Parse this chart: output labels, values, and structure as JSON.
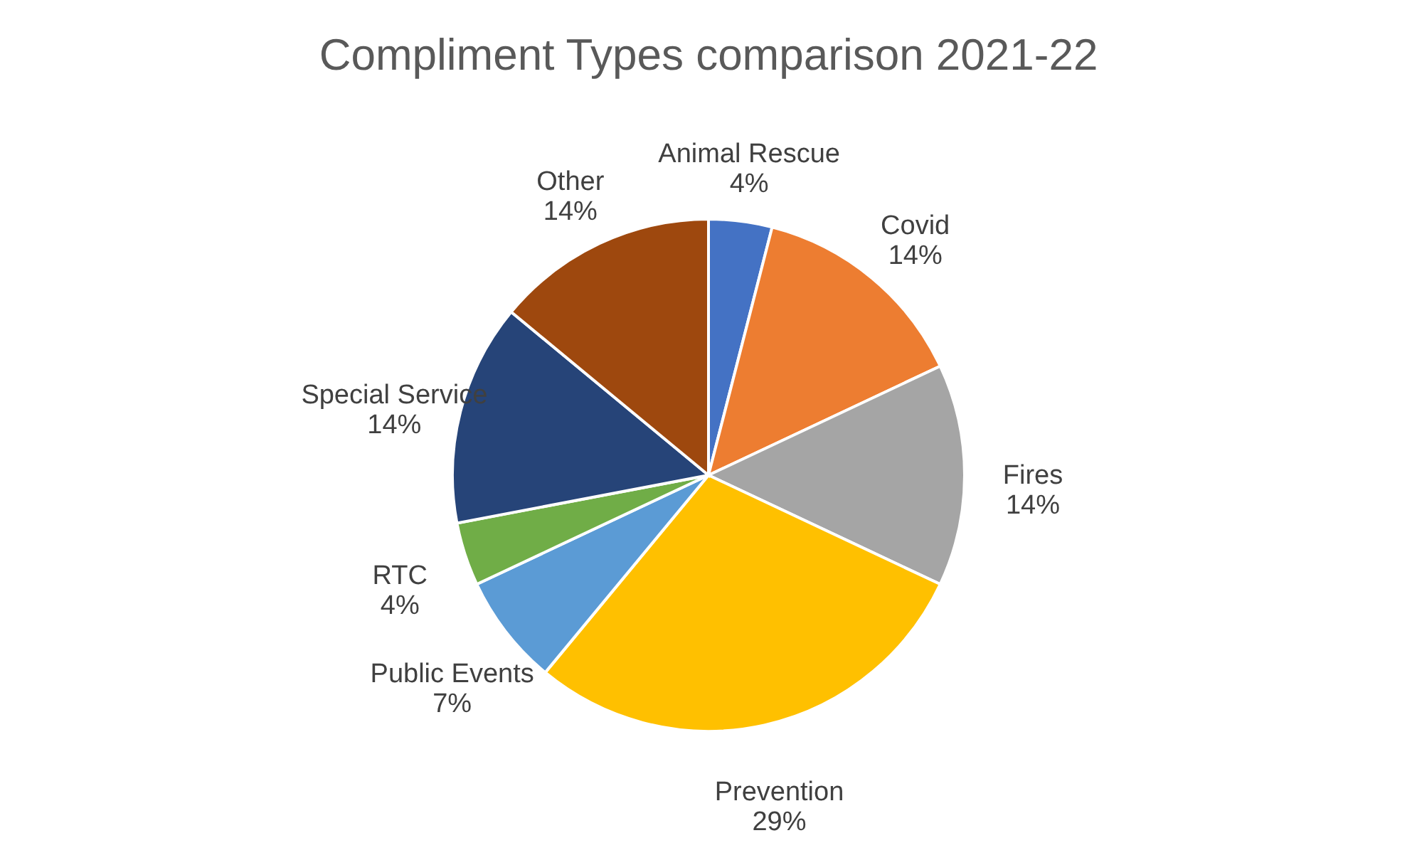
{
  "chart_data": {
    "type": "pie",
    "title": "Compliment Types comparison 2021-22",
    "categories": [
      "Animal Rescue",
      "Covid",
      "Fires",
      "Prevention",
      "Public Events",
      "RTC",
      "Special Service",
      "Other"
    ],
    "values": [
      4,
      14,
      14,
      29,
      7,
      4,
      14,
      14
    ],
    "value_labels": [
      "4%",
      "14%",
      "14%",
      "29%",
      "7%",
      "4%",
      "14%",
      "14%"
    ],
    "colors": [
      "#4472c4",
      "#ed7d31",
      "#a5a5a5",
      "#ffc000",
      "#5b9bd5",
      "#70ad47",
      "#264478",
      "#9e480e"
    ],
    "legend": false
  }
}
